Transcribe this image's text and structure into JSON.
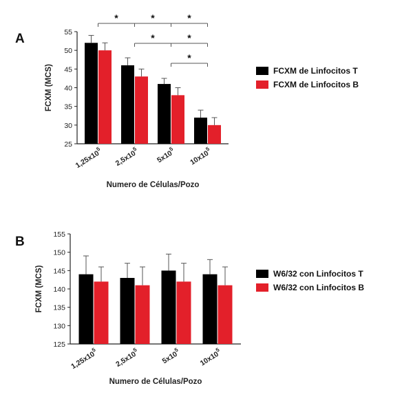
{
  "chart_data": [
    {
      "panel": "A",
      "type": "bar",
      "categories": [
        "1,25x10^5",
        "2,5x10^5",
        "5x10^5",
        "10x10^5"
      ],
      "series": [
        {
          "name": "FCXM de Linfocitos T",
          "color": "#000000",
          "values": [
            52,
            46,
            41,
            32
          ],
          "errors": [
            2,
            2,
            1.5,
            2
          ]
        },
        {
          "name": "FCXM de Linfocitos B",
          "color": "#e3202a",
          "values": [
            50,
            43,
            38,
            30
          ],
          "errors": [
            2,
            2,
            2,
            2
          ]
        }
      ],
      "ylabel": "FCXM (MCS)",
      "xlabel": "Numero de Células/Pozo",
      "ylim": [
        25,
        55
      ],
      "yticks": [
        25,
        30,
        35,
        40,
        45,
        50,
        55
      ],
      "significance": [
        {
          "from": 0,
          "to": 1,
          "row": 0,
          "label": "*"
        },
        {
          "from": 1,
          "to": 2,
          "row": 0,
          "label": "*"
        },
        {
          "from": 2,
          "to": 3,
          "row": 0,
          "label": "*"
        },
        {
          "from": 1,
          "to": 2,
          "row": 1,
          "label": "*"
        },
        {
          "from": 2,
          "to": 3,
          "row": 1,
          "label": "*"
        },
        {
          "from": 2,
          "to": 3,
          "row": 2,
          "label": "*"
        }
      ],
      "legend_position": "right"
    },
    {
      "panel": "B",
      "type": "bar",
      "categories": [
        "1,25x10^5",
        "2,5x10^5",
        "5x10^5",
        "10x10^5"
      ],
      "series": [
        {
          "name": "W6/32 con Linfocitos T",
          "color": "#000000",
          "values": [
            144,
            143,
            145,
            144
          ],
          "errors": [
            5,
            4,
            4.5,
            4
          ]
        },
        {
          "name": "W6/32 con Linfocitos B",
          "color": "#e3202a",
          "values": [
            142,
            141,
            142,
            141
          ],
          "errors": [
            4,
            5,
            5,
            5
          ]
        }
      ],
      "ylabel": "FCXM (MCS)",
      "xlabel": "Numero de Células/Pozo",
      "ylim": [
        125,
        155
      ],
      "yticks": [
        125,
        130,
        135,
        140,
        145,
        150,
        155
      ],
      "legend_position": "right"
    }
  ]
}
